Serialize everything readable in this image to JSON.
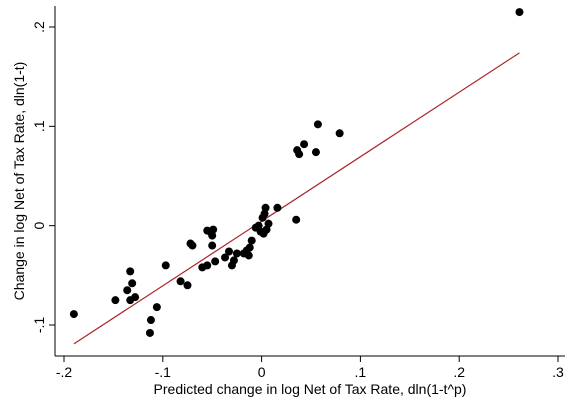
{
  "chart_data": {
    "type": "scatter",
    "title": "",
    "xlabel": "Predicted change in log Net of Tax Rate, dln(1-t^p)",
    "ylabel": "Change in log Net of Tax Rate, dln(1-t)",
    "xlim": [
      -0.2,
      0.3
    ],
    "ylim": [
      -0.12,
      0.22
    ],
    "xticks": [
      -0.2,
      -0.1,
      0,
      0.1,
      0.2,
      0.3
    ],
    "xtick_labels": [
      "-.2",
      "-.1",
      "0",
      ".1",
      ".2",
      ".3"
    ],
    "yticks": [
      -0.1,
      0,
      0.1,
      0.2
    ],
    "ytick_labels": [
      "-.1",
      "0",
      ".1",
      ".2"
    ],
    "grid": false,
    "legend": "none",
    "colors": {
      "points": "#000000",
      "fit_line": "#a8252a"
    },
    "fit_line": {
      "x": [
        -0.19,
        0.261
      ],
      "y": [
        -0.119,
        0.174
      ]
    },
    "points": [
      {
        "x": 0.261,
        "y": 0.215
      },
      {
        "x": 0.079,
        "y": 0.093
      },
      {
        "x": 0.057,
        "y": 0.102
      },
      {
        "x": 0.055,
        "y": 0.074
      },
      {
        "x": 0.043,
        "y": 0.082
      },
      {
        "x": 0.036,
        "y": 0.076
      },
      {
        "x": 0.038,
        "y": 0.072
      },
      {
        "x": 0.035,
        "y": 0.006
      },
      {
        "x": 0.016,
        "y": 0.018
      },
      {
        "x": 0.004,
        "y": 0.018
      },
      {
        "x": 0.003,
        "y": 0.012
      },
      {
        "x": 0.001,
        "y": 0.008
      },
      {
        "x": 0.007,
        "y": 0.002
      },
      {
        "x": 0.005,
        "y": -0.004
      },
      {
        "x": 0.002,
        "y": -0.008
      },
      {
        "x": -0.001,
        "y": -0.006
      },
      {
        "x": -0.003,
        "y": 0.0
      },
      {
        "x": -0.006,
        "y": -0.002
      },
      {
        "x": -0.01,
        "y": -0.015
      },
      {
        "x": -0.012,
        "y": -0.022
      },
      {
        "x": -0.015,
        "y": -0.025
      },
      {
        "x": -0.013,
        "y": -0.03
      },
      {
        "x": -0.018,
        "y": -0.028
      },
      {
        "x": -0.025,
        "y": -0.028
      },
      {
        "x": -0.028,
        "y": -0.035
      },
      {
        "x": -0.03,
        "y": -0.04
      },
      {
        "x": -0.033,
        "y": -0.026
      },
      {
        "x": -0.037,
        "y": -0.032
      },
      {
        "x": -0.047,
        "y": -0.036
      },
      {
        "x": -0.05,
        "y": -0.02
      },
      {
        "x": -0.05,
        "y": -0.01
      },
      {
        "x": -0.052,
        "y": -0.006
      },
      {
        "x": -0.049,
        "y": -0.004
      },
      {
        "x": -0.055,
        "y": -0.005
      },
      {
        "x": -0.055,
        "y": -0.04
      },
      {
        "x": -0.06,
        "y": -0.042
      },
      {
        "x": -0.072,
        "y": -0.018
      },
      {
        "x": -0.07,
        "y": -0.02
      },
      {
        "x": -0.075,
        "y": -0.06
      },
      {
        "x": -0.082,
        "y": -0.056
      },
      {
        "x": -0.097,
        "y": -0.04
      },
      {
        "x": -0.106,
        "y": -0.082
      },
      {
        "x": -0.112,
        "y": -0.095
      },
      {
        "x": -0.113,
        "y": -0.108
      },
      {
        "x": -0.128,
        "y": -0.072
      },
      {
        "x": -0.131,
        "y": -0.058
      },
      {
        "x": -0.133,
        "y": -0.075
      },
      {
        "x": -0.136,
        "y": -0.065
      },
      {
        "x": -0.133,
        "y": -0.046
      },
      {
        "x": -0.148,
        "y": -0.075
      },
      {
        "x": -0.19,
        "y": -0.089
      }
    ]
  }
}
